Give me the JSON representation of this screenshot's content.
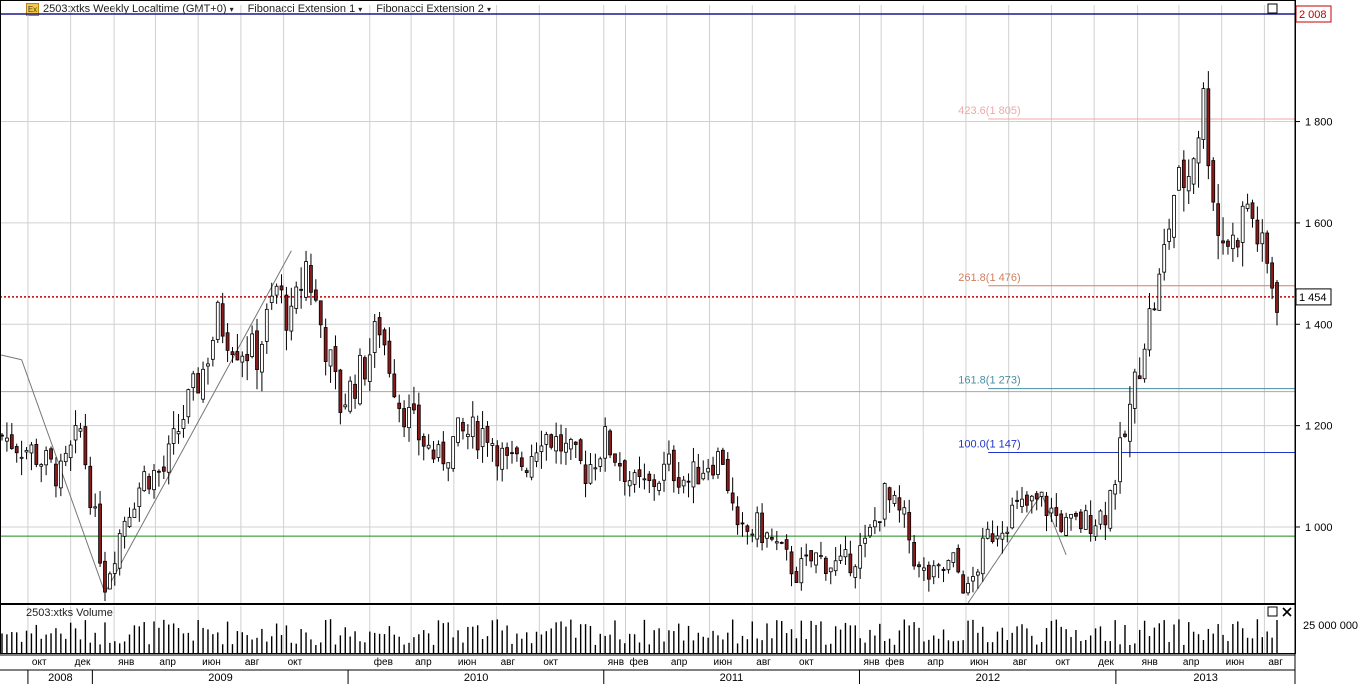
{
  "header": {
    "logo_text": "Ex",
    "items": [
      {
        "label": "2503:xtks Weekly Localtime (GMT+0)",
        "caret": "▾"
      },
      {
        "label": "Fibonacci Extension 1",
        "caret": "▾"
      },
      {
        "label": "Fibonacci Extension 2",
        "caret": "▾"
      }
    ]
  },
  "volume_panel": {
    "title": "2503:xtks Volume",
    "axis_label": "25 000 000"
  },
  "colors": {
    "up": "#ffffff",
    "down": "#8b1a1a",
    "outline": "#000000",
    "grid": "#d0d0d0",
    "last_price": "#c00000",
    "fib_100": "#2233cc",
    "fib_161": "#4a8fa0",
    "fib_261": "#d08060",
    "fib_423": "#f0a8a8",
    "green_line": "#1a8a1a",
    "top_line": "#1a1a8a"
  },
  "chart_data": {
    "type": "candlestick",
    "ylim": [
      850,
      2030
    ],
    "y_ticks": [
      {
        "value": 1000,
        "label": "1 000"
      },
      {
        "value": 1200,
        "label": "1 200"
      },
      {
        "value": 1400,
        "label": "1 400"
      },
      {
        "value": 1600,
        "label": "1 600"
      },
      {
        "value": 1800,
        "label": "1 800"
      }
    ],
    "top_label": "2 008",
    "top_value": 2008,
    "last_price": {
      "value": 1454,
      "label": "1 454"
    },
    "green_level": 982,
    "support_line_value": 1275,
    "fib_levels": [
      {
        "ratio_label": "423.6",
        "value_label": "(1 805)",
        "value": 1805,
        "color_key": "fib_423"
      },
      {
        "ratio_label": "261.8",
        "value_label": "(1 476)",
        "value": 1476,
        "color_key": "fib_261"
      },
      {
        "ratio_label": "161.8",
        "value_label": "(1 273)",
        "value": 1273,
        "color_key": "fib_161"
      },
      {
        "ratio_label": "100.0",
        "value_label": "(1 147)",
        "value": 1147,
        "color_key": "fib_100"
      }
    ],
    "fib1_points": [
      [
        "2008-09-22",
        1330
      ],
      [
        "2009-01-19",
        870
      ],
      [
        "2009-10-12",
        1545
      ]
    ],
    "fib2_points": [
      [
        "2012-06-04",
        850
      ],
      [
        "2012-09-17",
        1065
      ],
      [
        "2012-10-22",
        945
      ]
    ],
    "month_ticks": [
      {
        "date": "2008-10-01",
        "label": "окт"
      },
      {
        "date": "2008-12-01",
        "label": "дек"
      },
      {
        "date": "2009-02-01",
        "label": "янв"
      },
      {
        "date": "2009-04-01",
        "label": "апр"
      },
      {
        "date": "2009-06-01",
        "label": "июн"
      },
      {
        "date": "2009-08-01",
        "label": "авг"
      },
      {
        "date": "2009-10-01",
        "label": "окт"
      },
      {
        "date": "2010-02-01",
        "label": "фев"
      },
      {
        "date": "2010-04-01",
        "label": "апр"
      },
      {
        "date": "2010-06-01",
        "label": "июн"
      },
      {
        "date": "2010-08-01",
        "label": "авг"
      },
      {
        "date": "2010-10-01",
        "label": "окт"
      },
      {
        "date": "2011-01-01",
        "label": "янв"
      },
      {
        "date": "2011-02-01",
        "label": "фев"
      },
      {
        "date": "2011-04-01",
        "label": "апр"
      },
      {
        "date": "2011-06-01",
        "label": "июн"
      },
      {
        "date": "2011-08-01",
        "label": "авг"
      },
      {
        "date": "2011-10-01",
        "label": "окт"
      },
      {
        "date": "2012-01-01",
        "label": "янв"
      },
      {
        "date": "2012-02-01",
        "label": "фев"
      },
      {
        "date": "2012-04-01",
        "label": "апр"
      },
      {
        "date": "2012-06-01",
        "label": "июн"
      },
      {
        "date": "2012-08-01",
        "label": "авг"
      },
      {
        "date": "2012-10-01",
        "label": "окт"
      },
      {
        "date": "2012-12-01",
        "label": "дек"
      },
      {
        "date": "2013-02-01",
        "label": "янв"
      },
      {
        "date": "2013-04-01",
        "label": "апр"
      },
      {
        "date": "2013-06-01",
        "label": "июн"
      },
      {
        "date": "2013-08-01",
        "label": "авг"
      }
    ],
    "year_ticks": [
      {
        "date": "2008-10-01",
        "label": "2008"
      },
      {
        "date": "2009-01-01",
        "label": "2009"
      },
      {
        "date": "2010-01-01",
        "label": "2010"
      },
      {
        "date": "2011-01-01",
        "label": "2011"
      },
      {
        "date": "2012-01-01",
        "label": "2012"
      },
      {
        "date": "2013-01-01",
        "label": "2013"
      }
    ],
    "x_range": [
      "2008-08-25",
      "2013-08-19"
    ],
    "price_path": [
      [
        "2008-08-25",
        1180
      ],
      [
        "2008-10-06",
        1150
      ],
      [
        "2008-11-17",
        1100
      ],
      [
        "2008-12-15",
        1190
      ],
      [
        "2009-01-19",
        890
      ],
      [
        "2009-02-16",
        1020
      ],
      [
        "2009-03-16",
        1100
      ],
      [
        "2009-04-13",
        1110
      ],
      [
        "2009-05-11",
        1220
      ],
      [
        "2009-06-08",
        1310
      ],
      [
        "2009-06-29",
        1410
      ],
      [
        "2009-07-27",
        1360
      ],
      [
        "2009-08-24",
        1340
      ],
      [
        "2009-09-21",
        1470
      ],
      [
        "2009-10-12",
        1400
      ],
      [
        "2009-11-02",
        1520
      ],
      [
        "2009-11-23",
        1400
      ],
      [
        "2009-12-21",
        1240
      ],
      [
        "2010-01-25",
        1320
      ],
      [
        "2010-02-15",
        1400
      ],
      [
        "2010-03-15",
        1250
      ],
      [
        "2010-04-12",
        1180
      ],
      [
        "2010-05-10",
        1130
      ],
      [
        "2010-06-07",
        1180
      ],
      [
        "2010-07-19",
        1190
      ],
      [
        "2010-08-16",
        1120
      ],
      [
        "2010-09-13",
        1130
      ],
      [
        "2010-10-04",
        1190
      ],
      [
        "2010-11-01",
        1160
      ],
      [
        "2010-12-06",
        1110
      ],
      [
        "2011-01-03",
        1170
      ],
      [
        "2011-01-24",
        1130
      ],
      [
        "2011-02-14",
        1080
      ],
      [
        "2011-03-07",
        1080
      ],
      [
        "2011-04-04",
        1120
      ],
      [
        "2011-05-02",
        1090
      ],
      [
        "2011-05-30",
        1130
      ],
      [
        "2011-06-20",
        1140
      ],
      [
        "2011-07-11",
        980
      ],
      [
        "2011-08-08",
        1000
      ],
      [
        "2011-09-05",
        960
      ],
      [
        "2011-10-03",
        910
      ],
      [
        "2011-10-31",
        940
      ],
      [
        "2011-12-05",
        920
      ],
      [
        "2012-01-09",
        960
      ],
      [
        "2012-02-06",
        1060
      ],
      [
        "2012-03-05",
        1010
      ],
      [
        "2012-03-26",
        910
      ],
      [
        "2012-04-16",
        900
      ],
      [
        "2012-05-14",
        930
      ],
      [
        "2012-06-04",
        870
      ],
      [
        "2012-07-02",
        980
      ],
      [
        "2012-08-06",
        1030
      ],
      [
        "2012-09-17",
        1050
      ],
      [
        "2012-10-22",
        1000
      ],
      [
        "2012-11-19",
        1010
      ],
      [
        "2012-12-17",
        1030
      ],
      [
        "2013-01-14",
        1180
      ],
      [
        "2013-02-11",
        1380
      ],
      [
        "2013-03-04",
        1480
      ],
      [
        "2013-03-25",
        1660
      ],
      [
        "2013-04-15",
        1700
      ],
      [
        "2013-05-06",
        1840
      ],
      [
        "2013-05-27",
        1580
      ],
      [
        "2013-06-17",
        1560
      ],
      [
        "2013-07-08",
        1640
      ],
      [
        "2013-07-29",
        1540
      ],
      [
        "2013-08-19",
        1454
      ]
    ]
  }
}
